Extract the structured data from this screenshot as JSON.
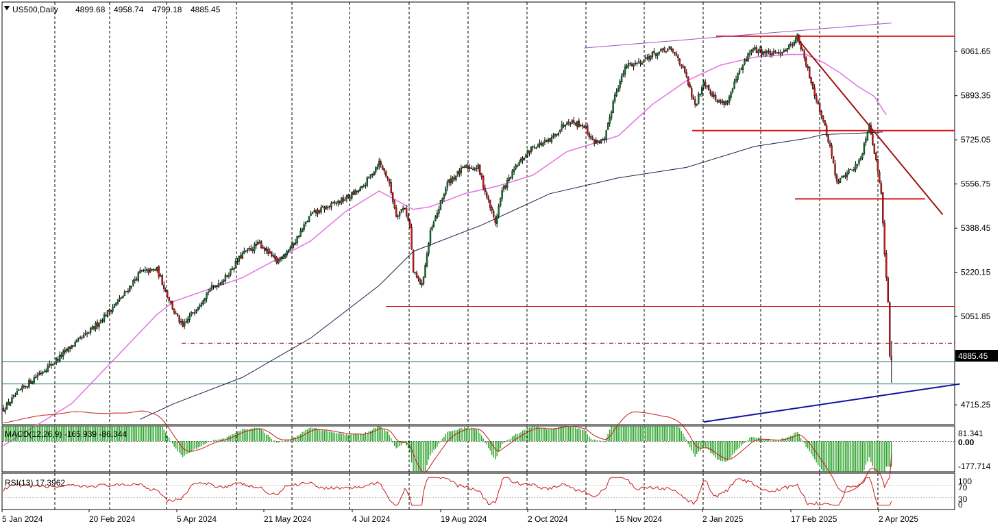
{
  "header": {
    "symbol": "US500,Daily",
    "open": "4899.68",
    "high": "4958.74",
    "low": "4799.18",
    "close": "4885.45"
  },
  "current_price_label": "4885.45",
  "chart_data": [
    {
      "type": "candlestick",
      "title": "US500,Daily",
      "price_ticks": [
        "6061.65",
        "5893.35",
        "5725.05",
        "5556.75",
        "5388.45",
        "5220.15",
        "5051.85",
        "4715.25"
      ],
      "ylim": [
        4640,
        6250
      ],
      "x_tick_labels": [
        "5 Jan 2024",
        "20 Feb 2024",
        "5 Apr 2024",
        "21 May 2024",
        "4 Jul 2024",
        "19 Aug 2024",
        "2 Oct 2024",
        "15 Nov 2024",
        "2 Jan 2025",
        "17 Feb 2025",
        "2 Apr 2025"
      ],
      "close_path": [
        [
          0,
          4700
        ],
        [
          10,
          4770
        ],
        [
          20,
          4830
        ],
        [
          30,
          4880
        ],
        [
          40,
          4940
        ],
        [
          50,
          4990
        ],
        [
          60,
          5060
        ],
        [
          70,
          5130
        ],
        [
          80,
          5220
        ],
        [
          90,
          5230
        ],
        [
          95,
          5150
        ],
        [
          100,
          5070
        ],
        [
          105,
          5010
        ],
        [
          110,
          5060
        ],
        [
          120,
          5150
        ],
        [
          130,
          5200
        ],
        [
          140,
          5290
        ],
        [
          150,
          5330
        ],
        [
          160,
          5260
        ],
        [
          170,
          5330
        ],
        [
          180,
          5440
        ],
        [
          190,
          5470
        ],
        [
          200,
          5500
        ],
        [
          210,
          5540
        ],
        [
          220,
          5640
        ],
        [
          225,
          5580
        ],
        [
          230,
          5440
        ],
        [
          235,
          5470
        ],
        [
          238,
          5390
        ],
        [
          240,
          5220
        ],
        [
          245,
          5170
        ],
        [
          250,
          5370
        ],
        [
          260,
          5560
        ],
        [
          270,
          5620
        ],
        [
          278,
          5620
        ],
        [
          282,
          5530
        ],
        [
          288,
          5410
        ],
        [
          292,
          5530
        ],
        [
          300,
          5620
        ],
        [
          310,
          5700
        ],
        [
          320,
          5720
        ],
        [
          330,
          5800
        ],
        [
          340,
          5780
        ],
        [
          345,
          5720
        ],
        [
          352,
          5720
        ],
        [
          358,
          5900
        ],
        [
          365,
          6010
        ],
        [
          372,
          6020
        ],
        [
          380,
          6050
        ],
        [
          390,
          6070
        ],
        [
          395,
          6040
        ],
        [
          400,
          5960
        ],
        [
          405,
          5850
        ],
        [
          410,
          5950
        ],
        [
          418,
          5870
        ],
        [
          424,
          5870
        ],
        [
          430,
          5970
        ],
        [
          438,
          6070
        ],
        [
          445,
          6060
        ],
        [
          452,
          6050
        ],
        [
          460,
          6080
        ],
        [
          465,
          6120
        ],
        [
          470,
          6010
        ],
        [
          478,
          5840
        ],
        [
          484,
          5700
        ],
        [
          488,
          5560
        ],
        [
          494,
          5600
        ],
        [
          500,
          5630
        ],
        [
          503,
          5680
        ],
        [
          507,
          5790
        ],
        [
          511,
          5640
        ],
        [
          514,
          5530
        ],
        [
          516,
          5300
        ],
        [
          518,
          5100
        ],
        [
          519,
          4900
        ],
        [
          520,
          4885.45
        ]
      ],
      "ma_50": [
        [
          0,
          4560
        ],
        [
          40,
          4720
        ],
        [
          90,
          5060
        ],
        [
          100,
          5110
        ],
        [
          140,
          5200
        ],
        [
          180,
          5340
        ],
        [
          200,
          5450
        ],
        [
          220,
          5530
        ],
        [
          240,
          5460
        ],
        [
          250,
          5470
        ],
        [
          270,
          5520
        ],
        [
          290,
          5550
        ],
        [
          310,
          5590
        ],
        [
          330,
          5680
        ],
        [
          360,
          5740
        ],
        [
          380,
          5860
        ],
        [
          400,
          5950
        ],
        [
          420,
          6010
        ],
        [
          440,
          6040
        ],
        [
          460,
          6050
        ],
        [
          470,
          6050
        ],
        [
          480,
          6020
        ],
        [
          490,
          5980
        ],
        [
          500,
          5930
        ],
        [
          510,
          5890
        ],
        [
          517,
          5820
        ]
      ],
      "ma_200": [
        [
          80,
          4660
        ],
        [
          100,
          4720
        ],
        [
          140,
          4820
        ],
        [
          180,
          4970
        ],
        [
          220,
          5170
        ],
        [
          240,
          5300
        ],
        [
          280,
          5400
        ],
        [
          320,
          5520
        ],
        [
          360,
          5580
        ],
        [
          400,
          5620
        ],
        [
          440,
          5700
        ],
        [
          470,
          5730
        ],
        [
          480,
          5745
        ],
        [
          500,
          5750
        ],
        [
          515,
          5755
        ]
      ],
      "support_resistance_levels": [
        6120,
        5760,
        5500,
        5090,
        4950,
        4880,
        4795
      ],
      "trendlines": {
        "upper_channel": [
          [
            340,
            6075
          ],
          [
            520,
            6170
          ]
        ],
        "falling_resistance": [
          [
            465,
            6110
          ],
          [
            550,
            5440
          ]
        ],
        "rising_support": [
          [
            410,
            4650
          ],
          [
            560,
            4795
          ]
        ]
      },
      "x_range": [
        0,
        560
      ]
    },
    {
      "type": "histogram",
      "title": "MACD(12,26,9) -165.939 -86.344",
      "macd": -165.939,
      "signal": -86.344,
      "y_ticks": [
        "81.341",
        "0.00",
        "-177.714"
      ],
      "ylim": [
        -200,
        100
      ]
    },
    {
      "type": "line",
      "title": "RSI(13) 17.3962",
      "rsi": 17.3962,
      "y_ticks": [
        "100",
        "70",
        "30",
        "0"
      ],
      "ylim": [
        0,
        100
      ]
    }
  ],
  "colors": {
    "bull": "#0a7d2c",
    "bear": "#e01010",
    "ma50": "#e878e0",
    "ma200": "#1a1a4a",
    "levels": "#d81818",
    "support": "#1010a0",
    "upper_channel": "#9a50c8",
    "falling": "#a01010",
    "macd_hist": "#28a028",
    "macd_signal": "#c81818",
    "rsi": "#c81818",
    "teal": "#1d6d6d"
  }
}
